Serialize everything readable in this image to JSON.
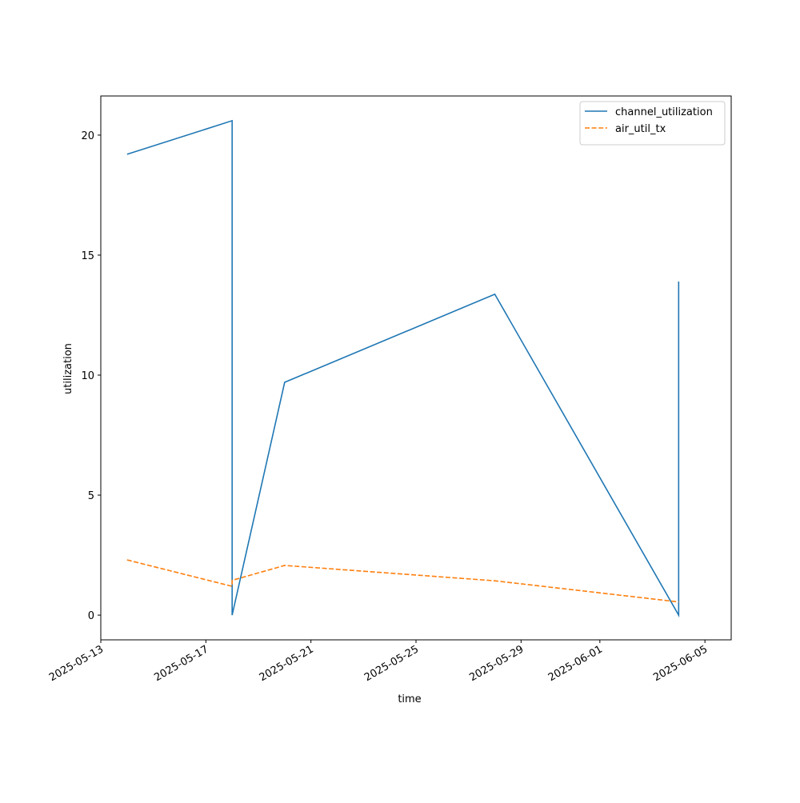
{
  "chart_data": {
    "type": "line",
    "x_label": "time",
    "y_label": "utilization",
    "x": [
      "2025-05-14",
      "2025-05-18",
      "2025-05-18",
      "2025-05-20",
      "2025-05-28",
      "2025-06-04",
      "2025-06-04"
    ],
    "series": [
      {
        "name": "channel_utilization",
        "color": "#1f77b4",
        "dash": "solid",
        "values": [
          19.2,
          20.6,
          0,
          9.7,
          13.37,
          0,
          13.9
        ]
      },
      {
        "name": "air_util_tx",
        "color": "#ff7f0e",
        "dash": "dashed",
        "values": [
          2.3,
          1.2,
          1.45,
          2.07,
          1.43,
          0.55,
          0.55
        ]
      }
    ],
    "xlim": [
      "2025-05-13",
      "2025-06-06"
    ],
    "xticks": [
      "2025-05-13",
      "2025-05-17",
      "2025-05-21",
      "2025-05-25",
      "2025-05-29",
      "2025-06-01",
      "2025-06-05"
    ],
    "ylim": [
      -1.03,
      21.63
    ],
    "yticks": [
      0,
      5,
      10,
      15,
      20
    ],
    "grid": false,
    "legend": "upper right"
  }
}
